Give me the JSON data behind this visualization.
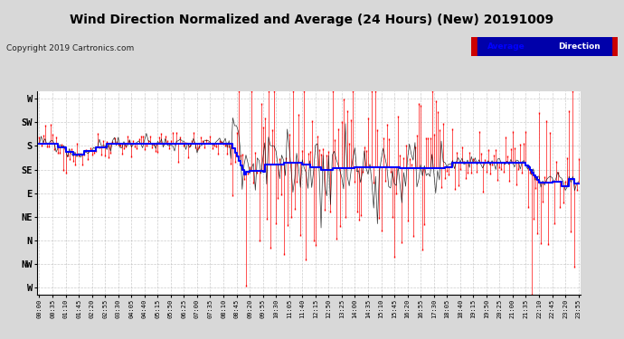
{
  "title": "Wind Direction Normalized and Average (24 Hours) (New) 20191009",
  "copyright": "Copyright 2019 Cartronics.com",
  "bg_color": "#d8d8d8",
  "plot_bg_color": "#ffffff",
  "ytick_labels": [
    "W",
    "SW",
    "S",
    "SE",
    "E",
    "NE",
    "N",
    "NW",
    "W"
  ],
  "ytick_values": [
    8,
    7,
    6,
    5,
    4,
    3,
    2,
    1,
    0
  ],
  "ylim": [
    -0.3,
    8.3
  ],
  "legend_avg_color": "#0000ff",
  "legend_dir_color": "#ffffff",
  "legend_box_color": "#cc0000",
  "legend_avg_bg": "#0000aa",
  "red_line_color": "#ff0000",
  "blue_line_color": "#0000ff",
  "black_line_color": "#000000",
  "grid_color": "#aaaaaa",
  "title_fontsize": 10,
  "copyright_fontsize": 6.5
}
